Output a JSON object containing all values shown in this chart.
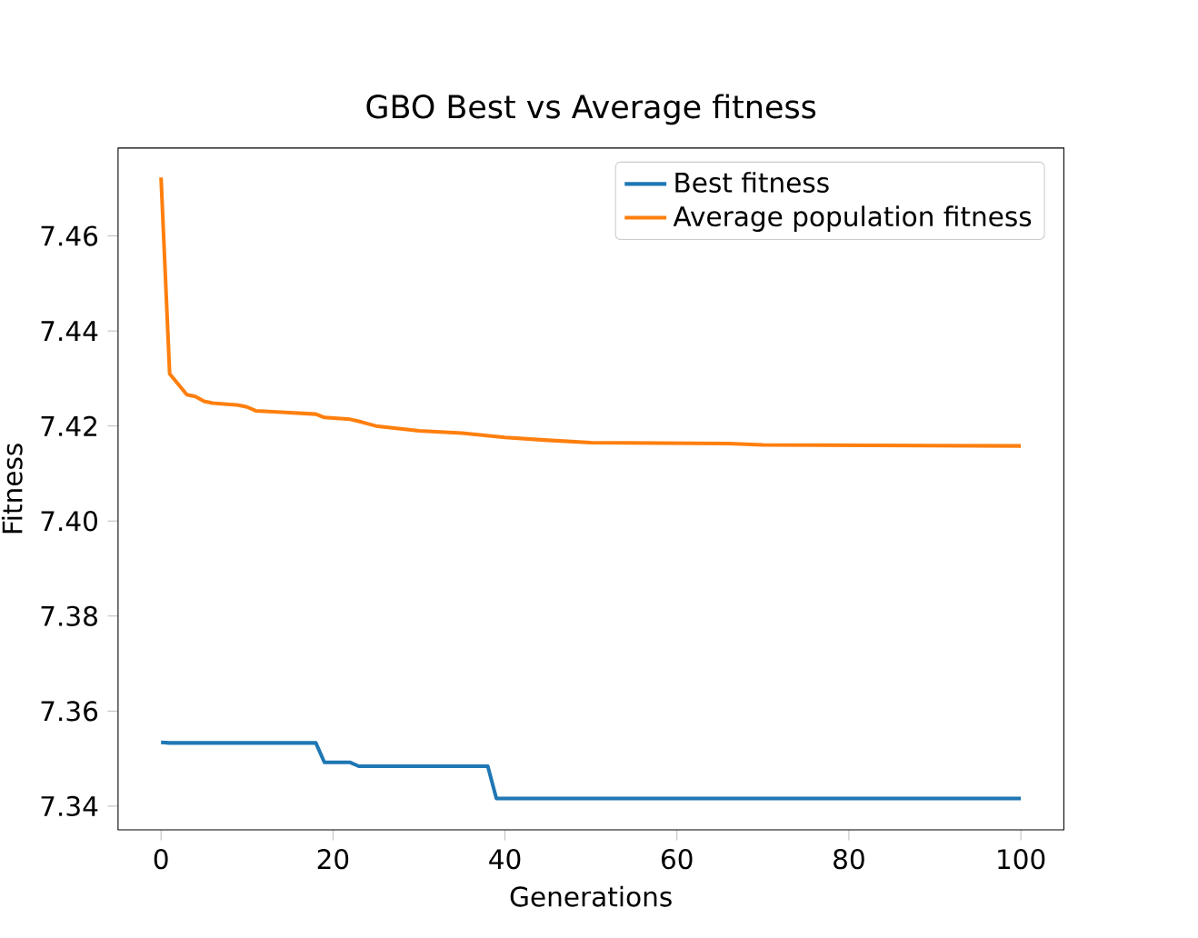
{
  "chart_data": {
    "type": "line",
    "title": "GBO Best vs Average fitness",
    "xlabel": "Generations",
    "ylabel": "Fitness",
    "xlim": [
      -5,
      105
    ],
    "ylim": [
      7.335,
      7.4785
    ],
    "xticks": [
      0,
      20,
      40,
      60,
      80,
      100
    ],
    "yticks": [
      7.34,
      7.36,
      7.38,
      {
        "value": 7.4,
        "label": "7.40"
      },
      7.42,
      7.44,
      7.46
    ],
    "grid": false,
    "legend": "top right",
    "marker": "none",
    "line_style": "solid",
    "series": [
      {
        "name": "Best fitness",
        "color": "#1f77b4",
        "x": [
          0,
          1,
          18,
          19,
          22,
          23,
          38,
          39,
          100
        ],
        "values": [
          7.3534,
          7.3533,
          7.3533,
          7.3492,
          7.3492,
          7.3484,
          7.3484,
          7.3416,
          7.3416
        ]
      },
      {
        "name": "Average population fitness",
        "color": "#ff7f0e",
        "x": [
          0,
          1,
          2,
          3,
          4,
          5,
          6,
          9,
          10,
          11,
          14,
          18,
          19,
          22,
          23,
          24,
          25,
          30,
          35,
          40,
          45,
          50,
          66,
          70,
          100
        ],
        "values": [
          7.4723,
          7.431,
          7.4288,
          7.4266,
          7.4262,
          7.4252,
          7.4248,
          7.4244,
          7.424,
          7.4232,
          7.4229,
          7.4225,
          7.4218,
          7.4214,
          7.421,
          7.4205,
          7.42,
          7.419,
          7.4185,
          7.4176,
          7.417,
          7.4165,
          7.4163,
          7.416,
          7.4158
        ]
      }
    ]
  }
}
